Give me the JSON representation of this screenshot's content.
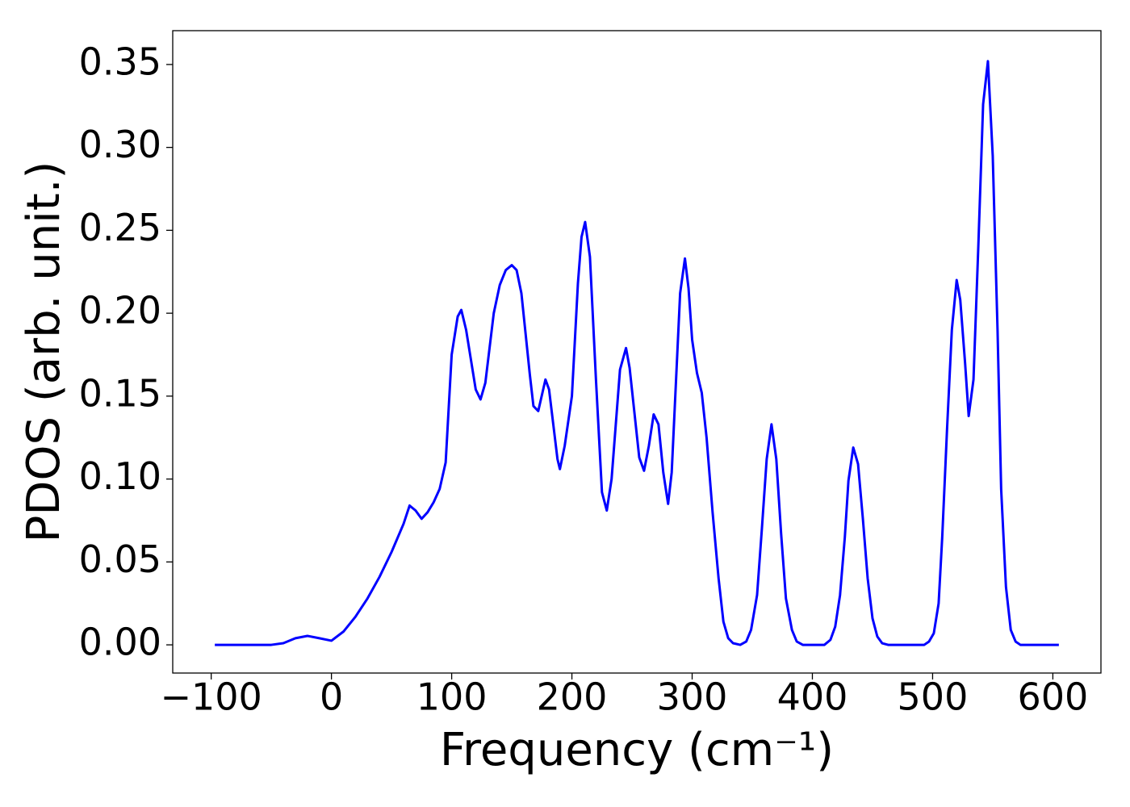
{
  "chart_data": {
    "type": "line",
    "x_label": "Frequency (cm⁻¹)",
    "y_label": "PDOS (arb. unit.)",
    "x": [
      -97,
      -50,
      -40,
      -30,
      -20,
      -10,
      0,
      10,
      20,
      30,
      40,
      50,
      60,
      65,
      70,
      75,
      80,
      85,
      90,
      95,
      100,
      105,
      108,
      112,
      120,
      124,
      128,
      135,
      140,
      145,
      150,
      154,
      158,
      165,
      168,
      172,
      178,
      181,
      188,
      190,
      194,
      200,
      205,
      208,
      211,
      215,
      220,
      225,
      229,
      233,
      240,
      245,
      248,
      256,
      260,
      264,
      268,
      272,
      276,
      280,
      283,
      290,
      294,
      297,
      300,
      304,
      308,
      312,
      317,
      322,
      326,
      330,
      334,
      340,
      345,
      349,
      354,
      358,
      362,
      366,
      370,
      374,
      378,
      383,
      387,
      392,
      410,
      415,
      419,
      423,
      427,
      430,
      434,
      438,
      442,
      446,
      450,
      454,
      458,
      463,
      493,
      497,
      501,
      505,
      508,
      512,
      516,
      520,
      523,
      527,
      530,
      534,
      538,
      542,
      546,
      550,
      554,
      557,
      561,
      565,
      569,
      573,
      605
    ],
    "series": [
      {
        "color": "#0000ff",
        "values": [
          0,
          0,
          0.001,
          0.004,
          0.0054,
          0.004,
          0.0025,
          0.008,
          0.017,
          0.028,
          0.041,
          0.056,
          0.073,
          0.084,
          0.081,
          0.076,
          0.08,
          0.086,
          0.094,
          0.11,
          0.175,
          0.198,
          0.202,
          0.19,
          0.154,
          0.148,
          0.158,
          0.2,
          0.217,
          0.226,
          0.229,
          0.226,
          0.212,
          0.163,
          0.144,
          0.141,
          0.16,
          0.154,
          0.112,
          0.106,
          0.12,
          0.15,
          0.218,
          0.246,
          0.255,
          0.234,
          0.16,
          0.092,
          0.081,
          0.1,
          0.166,
          0.179,
          0.167,
          0.113,
          0.105,
          0.12,
          0.139,
          0.133,
          0.104,
          0.085,
          0.104,
          0.212,
          0.233,
          0.215,
          0.184,
          0.164,
          0.152,
          0.125,
          0.08,
          0.04,
          0.014,
          0.004,
          0.001,
          0,
          0.002,
          0.009,
          0.03,
          0.07,
          0.112,
          0.133,
          0.112,
          0.067,
          0.028,
          0.009,
          0.002,
          0,
          0,
          0.003,
          0.011,
          0.03,
          0.065,
          0.099,
          0.119,
          0.109,
          0.076,
          0.04,
          0.016,
          0.005,
          0.001,
          0,
          0,
          0.002,
          0.007,
          0.025,
          0.065,
          0.13,
          0.19,
          0.22,
          0.208,
          0.17,
          0.138,
          0.16,
          0.24,
          0.326,
          0.352,
          0.295,
          0.19,
          0.094,
          0.035,
          0.009,
          0.002,
          0,
          0
        ]
      }
    ],
    "xlim": [
      -132,
      640
    ],
    "xticks": [
      {
        "value": -100,
        "label": "−100"
      },
      0,
      100,
      200,
      300,
      400,
      500,
      600
    ],
    "ylim": [
      -0.017,
      0.3704
    ],
    "yticks": [
      {
        "value": 0,
        "label": "0.00"
      },
      0.05,
      {
        "value": 0.1,
        "label": "0.10"
      },
      0.15,
      {
        "value": 0.2,
        "label": "0.20"
      },
      0.25,
      {
        "value": 0.3,
        "label": "0.30"
      },
      0.35
    ],
    "grid": false
  }
}
